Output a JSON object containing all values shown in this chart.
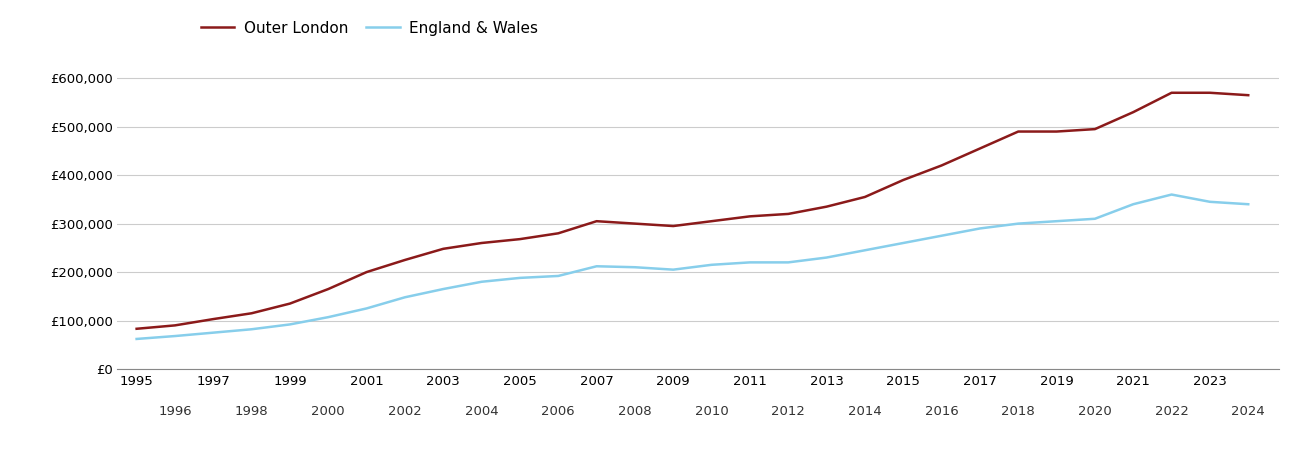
{
  "outer_london": {
    "years": [
      1995,
      1996,
      1997,
      1998,
      1999,
      2000,
      2001,
      2002,
      2003,
      2004,
      2005,
      2006,
      2007,
      2008,
      2009,
      2010,
      2011,
      2012,
      2013,
      2014,
      2015,
      2016,
      2017,
      2018,
      2019,
      2020,
      2021,
      2022,
      2023,
      2024
    ],
    "values": [
      83000,
      90000,
      103000,
      115000,
      135000,
      165000,
      200000,
      225000,
      248000,
      260000,
      268000,
      280000,
      305000,
      300000,
      295000,
      305000,
      315000,
      320000,
      335000,
      355000,
      390000,
      420000,
      455000,
      490000,
      490000,
      495000,
      530000,
      570000,
      570000,
      565000
    ]
  },
  "england_wales": {
    "years": [
      1995,
      1996,
      1997,
      1998,
      1999,
      2000,
      2001,
      2002,
      2003,
      2004,
      2005,
      2006,
      2007,
      2008,
      2009,
      2010,
      2011,
      2012,
      2013,
      2014,
      2015,
      2016,
      2017,
      2018,
      2019,
      2020,
      2021,
      2022,
      2023,
      2024
    ],
    "values": [
      62000,
      68000,
      75000,
      82000,
      92000,
      107000,
      125000,
      148000,
      165000,
      180000,
      188000,
      192000,
      212000,
      210000,
      205000,
      215000,
      220000,
      220000,
      230000,
      245000,
      260000,
      275000,
      290000,
      300000,
      305000,
      310000,
      340000,
      360000,
      345000,
      340000
    ]
  },
  "outer_london_color": "#8B1A1A",
  "england_wales_color": "#87CEEB",
  "outer_london_label": "Outer London",
  "england_wales_label": "England & Wales",
  "ylim": [
    0,
    650000
  ],
  "yticks": [
    0,
    100000,
    200000,
    300000,
    400000,
    500000,
    600000
  ],
  "ytick_labels": [
    "£0",
    "£100,000",
    "£200,000",
    "£300,000",
    "£400,000",
    "£500,000",
    "£600,000"
  ],
  "background_color": "#ffffff",
  "grid_color": "#cccccc",
  "line_width": 1.8,
  "legend_fontsize": 11,
  "tick_fontsize": 9.5,
  "xlim_left": 1994.5,
  "xlim_right": 2024.8
}
